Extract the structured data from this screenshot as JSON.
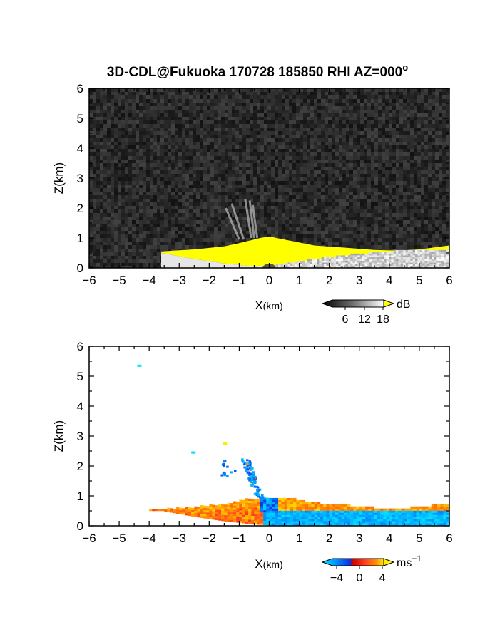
{
  "figure": {
    "title": "3D-CDL@Fukuoka 170728 185850 RHI AZ=000",
    "title_superscript": "o"
  },
  "chart_data": [
    {
      "type": "heatmap",
      "panel": "snr",
      "xlabel_main": "X",
      "xlabel_unit": "(km)",
      "ylabel": "Z(km)",
      "xlim": [
        -6,
        6
      ],
      "ylim": [
        0,
        6
      ],
      "xticks": [
        "-6",
        "-5",
        "-4",
        "-3",
        "-2",
        "-1",
        "0",
        "1",
        "2",
        "3",
        "4",
        "5",
        "6"
      ],
      "yticks": [
        "0",
        "1",
        "2",
        "3",
        "4",
        "5",
        "6"
      ],
      "background_color": "#2a2a2a",
      "colorbar": {
        "label": "dB",
        "ticks": [
          "6",
          "12",
          "18"
        ],
        "saturation_color": "#ffff00"
      },
      "features": {
        "boundary_layer_top_km": [
          [
            -3.6,
            0.55
          ],
          [
            -2.5,
            0.62
          ],
          [
            -1.5,
            0.72
          ],
          [
            -0.9,
            0.85
          ],
          [
            -0.3,
            1.0
          ],
          [
            0,
            1.05
          ],
          [
            0.5,
            0.95
          ],
          [
            1.5,
            0.75
          ],
          [
            2.5,
            0.68
          ],
          [
            3.5,
            0.6
          ],
          [
            4.3,
            0.58
          ],
          [
            5,
            0.62
          ],
          [
            6,
            0.75
          ]
        ],
        "saturated_base_km": [
          [
            -3.6,
            0.5
          ],
          [
            -2.5,
            0.3
          ],
          [
            -1.5,
            0.15
          ],
          [
            -0.5,
            0.05
          ],
          [
            0,
            0.02
          ],
          [
            0.5,
            0.12
          ],
          [
            1.5,
            0.28
          ],
          [
            2.5,
            0.4
          ],
          [
            3.5,
            0.5
          ],
          [
            4.3,
            0.55
          ]
        ],
        "plume_x_km": [
          -1.5,
          -0.5
        ],
        "plume_top_km": 2.3
      }
    },
    {
      "type": "heatmap",
      "panel": "doppler_velocity",
      "xlabel_main": "X",
      "xlabel_unit": "(km)",
      "ylabel": "Z(km)",
      "xlim": [
        -6,
        6
      ],
      "ylim": [
        0,
        6
      ],
      "xticks": [
        "-6",
        "-5",
        "-4",
        "-3",
        "-2",
        "-1",
        "0",
        "1",
        "2",
        "3",
        "4",
        "5",
        "6"
      ],
      "yticks": [
        "0",
        "1",
        "2",
        "3",
        "4",
        "5",
        "6"
      ],
      "colorbar": {
        "label": "ms",
        "label_superscript": "−1",
        "ticks": [
          "−4",
          "0",
          "4"
        ]
      },
      "features": {
        "velocity_range_ms": [
          -4,
          4
        ],
        "upper_layer_ms": 3.0,
        "lower_layer_left_ms": 2.5,
        "lower_layer_right_ms": -3.0,
        "isolated_points_km": [
          [
            -4.35,
            5.35
          ],
          [
            -2.55,
            2.45
          ],
          [
            -1.5,
            2.75
          ]
        ]
      }
    }
  ]
}
